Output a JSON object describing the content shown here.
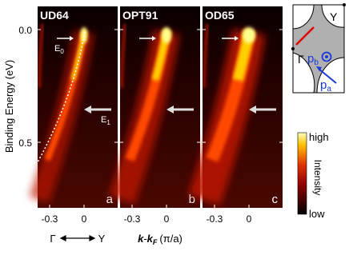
{
  "panels": [
    {
      "label": "UD64",
      "letter": "a"
    },
    {
      "label": "OPT91",
      "letter": "b"
    },
    {
      "label": "OD65",
      "letter": "c"
    }
  ],
  "y_axis": {
    "label": "Binding Energy (eV)",
    "ticks": [
      "0.0",
      "0.5"
    ]
  },
  "x_axis": {
    "ticks": [
      "-0.3",
      "0"
    ],
    "k1": "k",
    "minus": "-",
    "k2": "k",
    "sub": "F",
    "unit": "(π/a)"
  },
  "direction": {
    "from": "Γ",
    "to": "Y"
  },
  "annotations": {
    "e0": "E",
    "e0_sub": "0",
    "e1": "E",
    "e1_sub": "1"
  },
  "colorbar": {
    "high": "high",
    "title": "Intensity",
    "low": "low"
  },
  "brillouin_zone": {
    "corner": "Y",
    "center": "Γ",
    "pb": "p",
    "pb_sub": "b",
    "pa": "p",
    "pa_sub": "a"
  }
}
